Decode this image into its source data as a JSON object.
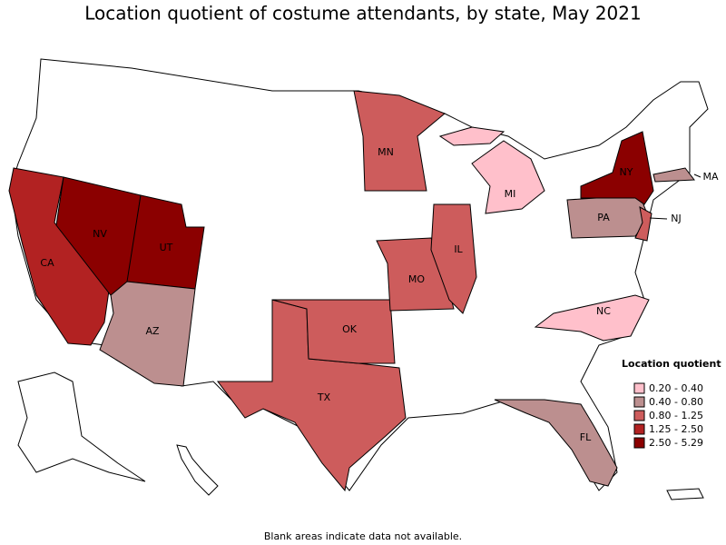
{
  "title": "Location quotient of costume attendants, by state, May 2021",
  "legend": {
    "title": "Location quotient",
    "items": [
      {
        "label": "0.20 - 0.40",
        "color": "#ffc0cb"
      },
      {
        "label": "0.40 - 0.80",
        "color": "#bc8f8f"
      },
      {
        "label": "0.80 - 1.25",
        "color": "#cd5c5c"
      },
      {
        "label": "1.25 - 2.50",
        "color": "#b22222"
      },
      {
        "label": "2.50 - 5.29",
        "color": "#8b0000"
      }
    ]
  },
  "states": [
    {
      "abbr": "CA",
      "class": 3
    },
    {
      "abbr": "NV",
      "class": 4
    },
    {
      "abbr": "UT",
      "class": 4
    },
    {
      "abbr": "AZ",
      "class": 1
    },
    {
      "abbr": "TX",
      "class": 2
    },
    {
      "abbr": "OK",
      "class": 2
    },
    {
      "abbr": "MO",
      "class": 2
    },
    {
      "abbr": "IL",
      "class": 2
    },
    {
      "abbr": "MN",
      "class": 2
    },
    {
      "abbr": "MI",
      "class": 0
    },
    {
      "abbr": "NC",
      "class": 0
    },
    {
      "abbr": "FL",
      "class": 1
    },
    {
      "abbr": "PA",
      "class": 1
    },
    {
      "abbr": "NY",
      "class": 4
    },
    {
      "abbr": "MA",
      "class": 1
    },
    {
      "abbr": "NJ",
      "class": 2
    }
  ],
  "note": "Blank areas indicate data not available."
}
